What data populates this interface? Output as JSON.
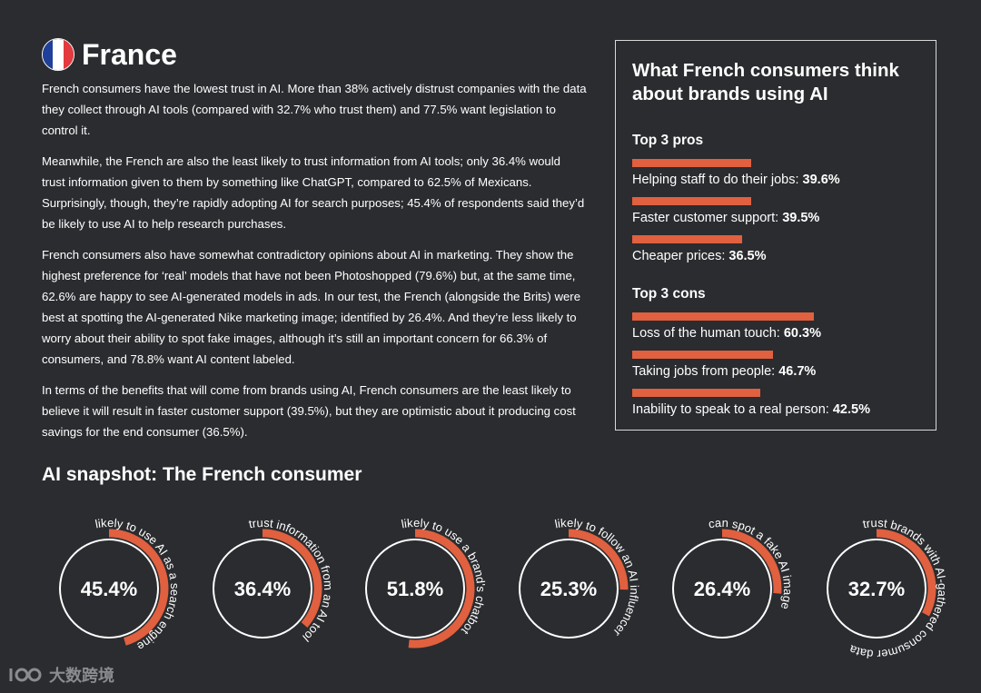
{
  "header": {
    "title": "France",
    "flag_colors": [
      "#1f3f9a",
      "#ffffff",
      "#e23a3f"
    ]
  },
  "paragraphs": [
    "French consumers have the lowest trust in AI. More than 38% actively distrust companies with the data they collect through AI tools (compared with 32.7% who trust them) and 77.5% want legislation to control it.",
    "Meanwhile, the French are also the least likely to trust information from AI tools; only 36.4% would trust information given to them by something like ChatGPT, compared to 62.5% of Mexicans. Surprisingly, though, they’re rapidly adopting AI for search purposes; 45.4% of respondents said they’d be likely to use AI to help research purchases.",
    "French consumers also have somewhat contradictory opinions about AI in marketing. They show the highest preference for ‘real’ models that have not been Photoshopped (79.6%) but, at the same time, 62.6% are happy to see AI-generated models in ads. In our test, the French (alongside the Brits) were best at spotting the AI-generated Nike marketing image; identified by 26.4%. And they’re less likely to worry about their ability to spot fake images, although it’s still an important concern for 66.3% of consumers, and 78.8% want AI content labeled.",
    "In terms of the benefits that will come from brands using AI, French consumers are the least likely to believe it will result in faster customer support (39.5%), but they are optimistic about it producing cost savings for the end consumer (36.5%)."
  ],
  "panel": {
    "title": "What French consumers think about brands using AI",
    "pros_title": "Top 3 pros",
    "pros": [
      {
        "label": "Helping staff to do their jobs:",
        "value": "39.6%",
        "pct": 39.6
      },
      {
        "label": "Faster customer support:",
        "value": "39.5%",
        "pct": 39.5
      },
      {
        "label": "Cheaper prices:",
        "value": "36.5%",
        "pct": 36.5
      }
    ],
    "cons_title": "Top 3 cons",
    "cons": [
      {
        "label": "Loss of the human touch:",
        "value": "60.3%",
        "pct": 60.3
      },
      {
        "label": "Taking jobs from people:",
        "value": "46.7%",
        "pct": 46.7
      },
      {
        "label": "Inability to speak to a real person:",
        "value": "42.5%",
        "pct": 42.5
      }
    ]
  },
  "snapshot": {
    "title": "AI snapshot: The French consumer",
    "accent": "#e0603f",
    "gauges": [
      {
        "value": "45.4%",
        "pct": 45.4,
        "label": "likely to use AI as a search engine"
      },
      {
        "value": "36.4%",
        "pct": 36.4,
        "label": "trust information from an AI tool"
      },
      {
        "value": "51.8%",
        "pct": 51.8,
        "label": "likely to use a brand's chatbot"
      },
      {
        "value": "25.3%",
        "pct": 25.3,
        "label": "likely to follow an AI influencer"
      },
      {
        "value": "26.4%",
        "pct": 26.4,
        "label": "can spot a fake AI image"
      },
      {
        "value": "32.7%",
        "pct": 32.7,
        "label": "trust brands with AI-gathered consumer data"
      }
    ]
  },
  "watermark": {
    "text": "大数跨境",
    "icon": "logo-icon"
  }
}
